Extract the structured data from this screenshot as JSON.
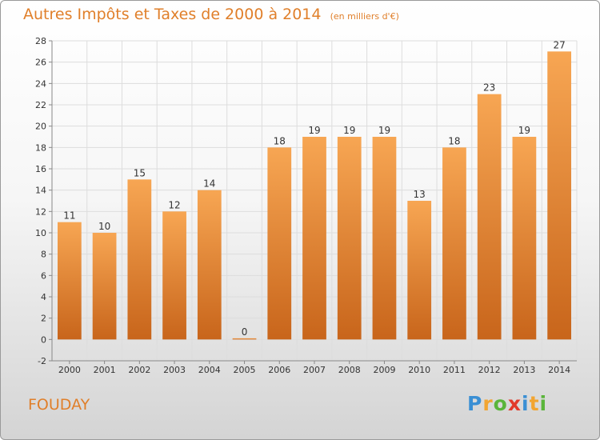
{
  "title": "Autres Impôts et Taxes de 2000 à 2014",
  "unit_note": "(en milliers d'€)",
  "commune": "FOUDAY",
  "logo": {
    "letters": [
      "P",
      "r",
      "o",
      "x",
      "i",
      "t",
      "i"
    ],
    "colors": [
      "#3a8fd4",
      "#f2a531",
      "#5ab53a",
      "#e23a2a",
      "#3a8fd4",
      "#f2a531",
      "#5ab53a"
    ]
  },
  "colors": {
    "title": "#e07f2a",
    "bar_top": "#f7a653",
    "bar_bottom": "#c8651b",
    "grid": "#dddddd",
    "axis": "#888888"
  },
  "chart_data": {
    "type": "bar",
    "title": "Autres Impôts et Taxes de 2000 à 2014",
    "categories": [
      "2000",
      "2001",
      "2002",
      "2003",
      "2004",
      "2005",
      "2006",
      "2007",
      "2008",
      "2009",
      "2010",
      "2011",
      "2012",
      "2013",
      "2014"
    ],
    "values": [
      11,
      10,
      15,
      12,
      14,
      0,
      18,
      19,
      19,
      19,
      13,
      18,
      23,
      19,
      27
    ],
    "labels": [
      "11",
      "10",
      "15",
      "12",
      "14",
      "0",
      "18",
      "19",
      "19",
      "19",
      "13",
      "18",
      "23",
      "19",
      "27"
    ],
    "yticks": [
      -2,
      0,
      2,
      4,
      6,
      8,
      10,
      12,
      14,
      16,
      18,
      20,
      22,
      24,
      26,
      28
    ],
    "ylim": [
      -2,
      28
    ],
    "grid": true,
    "xlabel": "",
    "ylabel": ""
  }
}
